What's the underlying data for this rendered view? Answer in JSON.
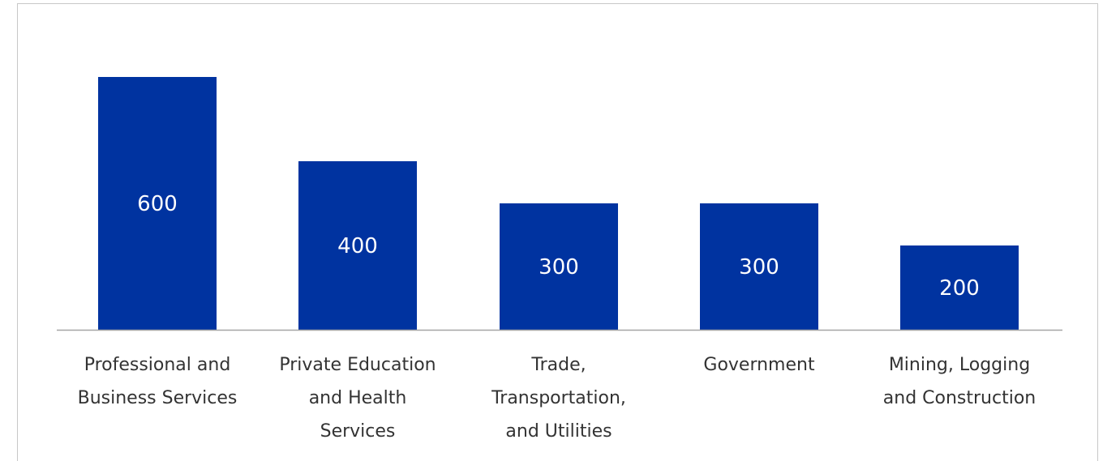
{
  "colors": {
    "bar": "#0033a0",
    "axis": "#a6a6a6",
    "label": "#333333",
    "value_label": "#ffffff"
  },
  "chart_data": {
    "type": "bar",
    "categories": [
      [
        "Professional and",
        "Business Services"
      ],
      [
        "Private Education",
        "and Health",
        "Services"
      ],
      [
        "Trade,",
        "Transportation,",
        "and Utilities"
      ],
      [
        "Government"
      ],
      [
        "Mining, Logging",
        "and Construction"
      ]
    ],
    "values": [
      600,
      400,
      300,
      300,
      200
    ],
    "data_labels": [
      "600",
      "400",
      "300",
      "300",
      "200"
    ],
    "ylim": [
      0,
      600
    ],
    "grid": false,
    "legend": "none"
  }
}
